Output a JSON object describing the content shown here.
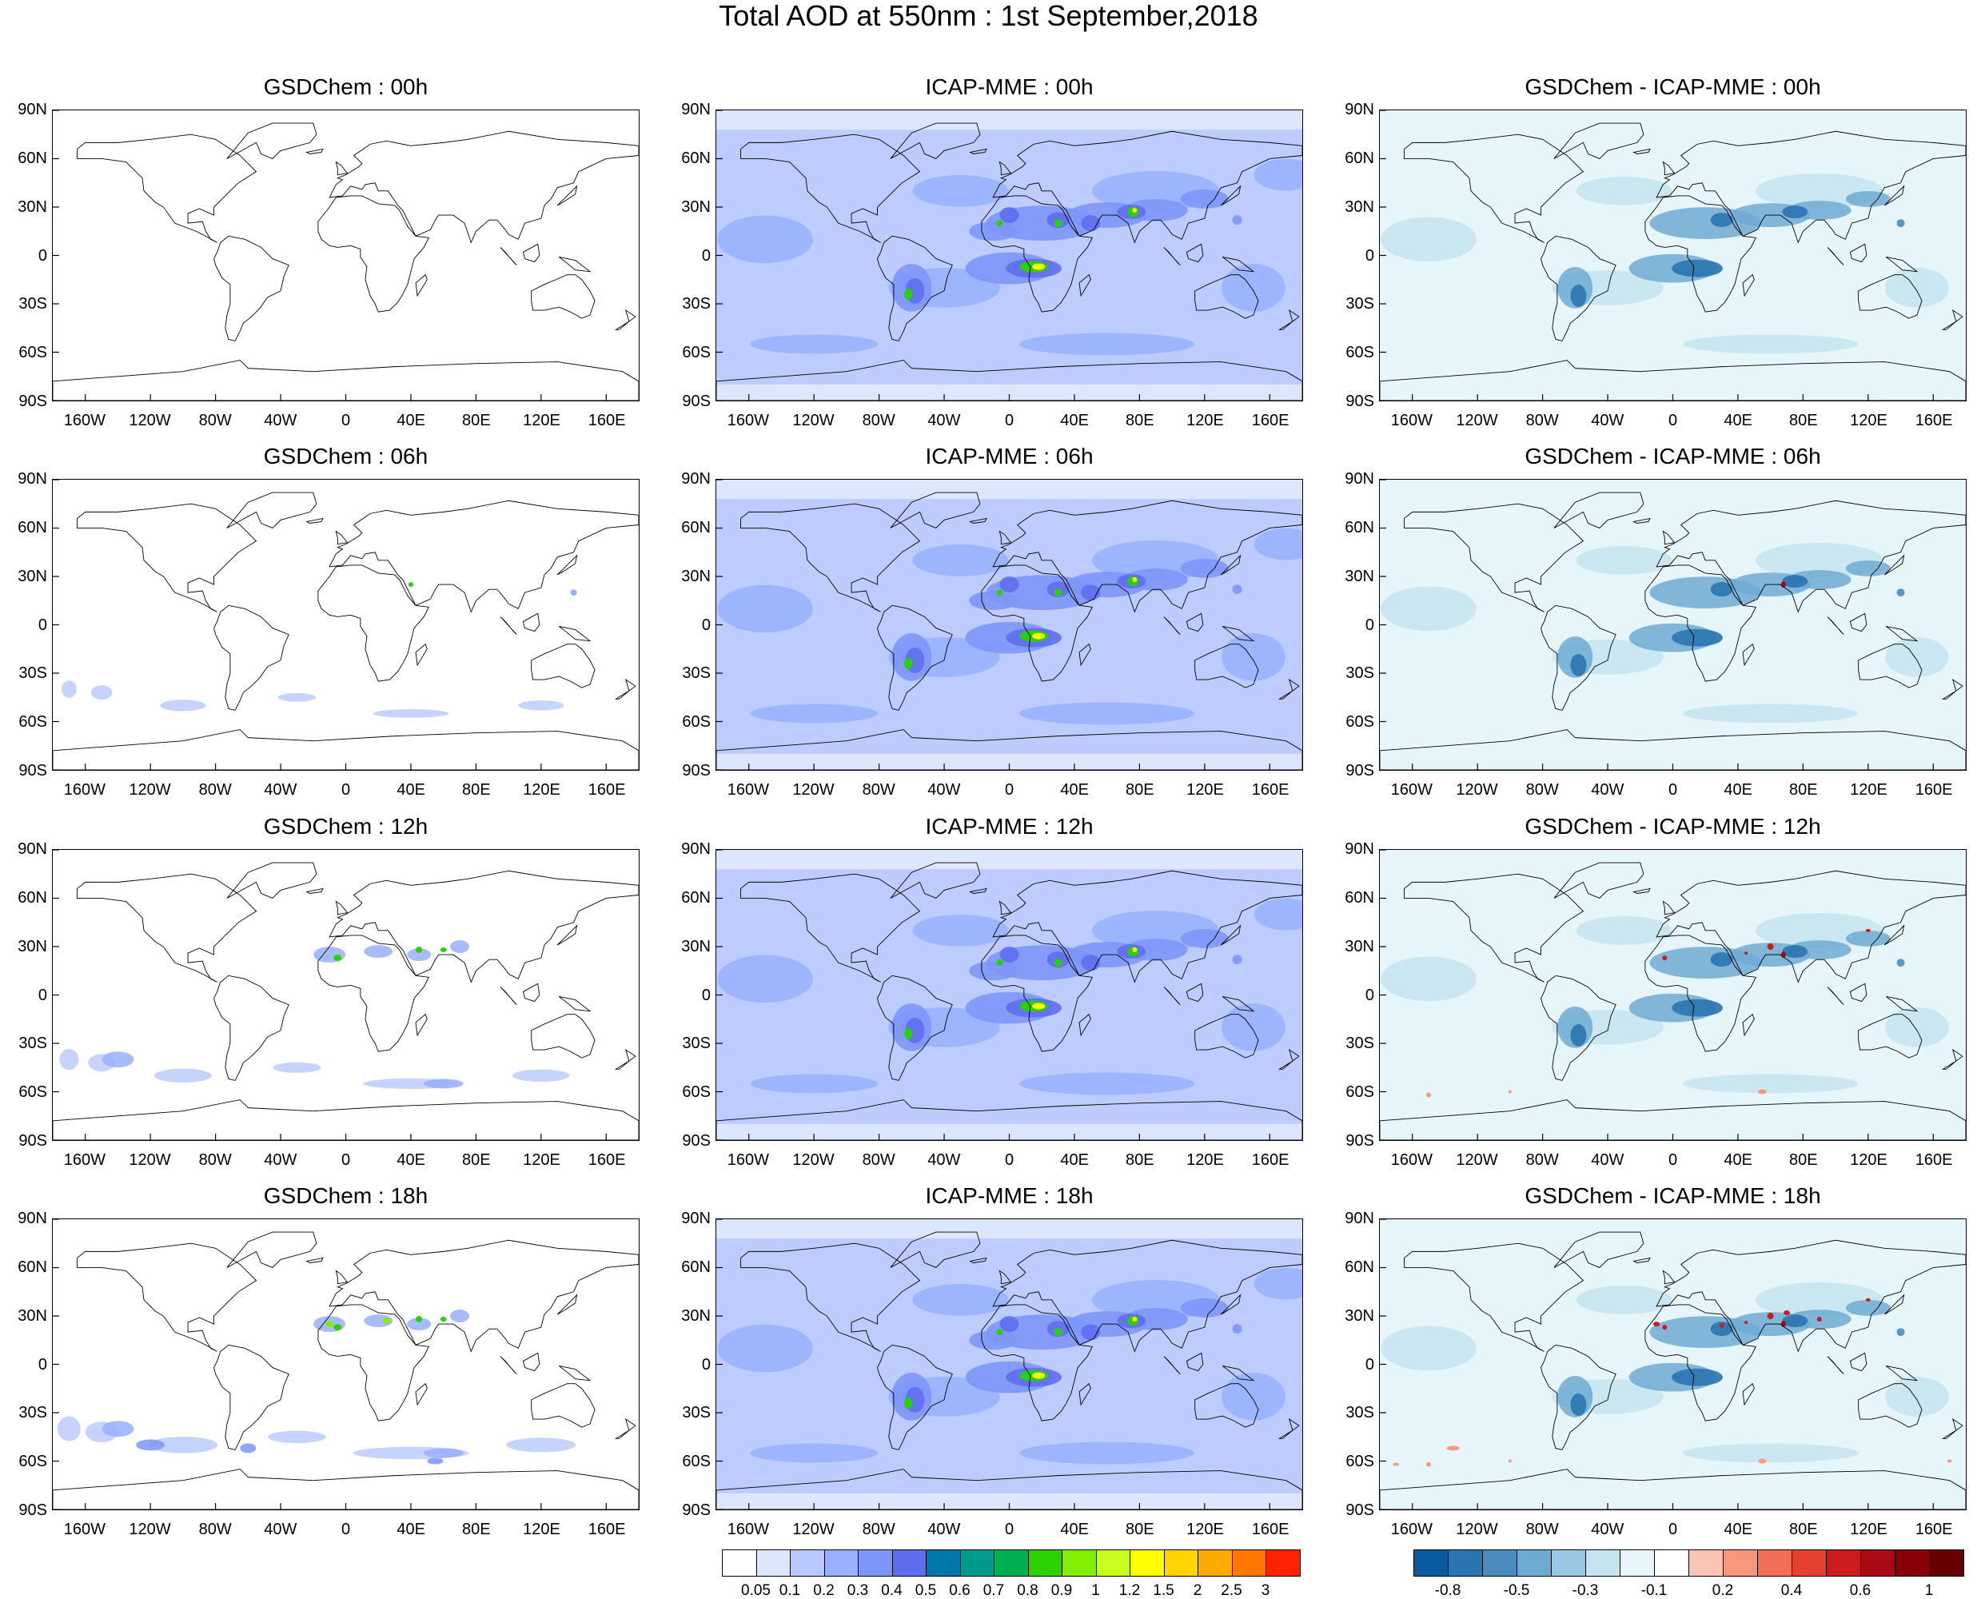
{
  "title": "Total AOD at 550nm : 1st September,2018",
  "lat_labels": [
    "90N",
    "60N",
    "30N",
    "0",
    "30S",
    "60S",
    "90S"
  ],
  "lon_labels": [
    "160W",
    "120W",
    "80W",
    "40W",
    "0",
    "40E",
    "80E",
    "120E",
    "160E"
  ],
  "rows": [
    {
      "titles": [
        "GSDChem : 00h",
        "ICAP-MME : 00h",
        "GSDChem - ICAP-MME : 00h"
      ]
    },
    {
      "titles": [
        "GSDChem : 06h",
        "ICAP-MME : 06h",
        "GSDChem - ICAP-MME : 06h"
      ]
    },
    {
      "titles": [
        "GSDChem : 12h",
        "ICAP-MME : 12h",
        "GSDChem - ICAP-MME : 12h"
      ]
    },
    {
      "titles": [
        "GSDChem : 18h",
        "ICAP-MME : 18h",
        "GSDChem - ICAP-MME : 18h"
      ]
    }
  ],
  "aod_colorbar": {
    "labels": [
      "0.05",
      "0.1",
      "0.2",
      "0.3",
      "0.4",
      "0.5",
      "0.6",
      "0.7",
      "0.8",
      "0.9",
      "1",
      "1.2",
      "1.5",
      "2",
      "2.5",
      "3"
    ],
    "colors": [
      "#ffffff",
      "#dce6ff",
      "#b9c8ff",
      "#98b0ff",
      "#7d96fa",
      "#5f6ef0",
      "#0077aa",
      "#009b8c",
      "#00b050",
      "#29d100",
      "#84ee00",
      "#c8ff1e",
      "#ffff00",
      "#ffd400",
      "#ffaa00",
      "#ff7700",
      "#ff2200"
    ]
  },
  "diff_colorbar": {
    "labels": [
      "-0.8",
      "-0.5",
      "-0.3",
      "-0.1",
      "0.2",
      "0.4",
      "0.6",
      "1"
    ],
    "colors": [
      "#0a5aa0",
      "#2a74b0",
      "#4a8cc0",
      "#6eaad2",
      "#98c8e2",
      "#c5e4f0",
      "#e6f5fa",
      "#ffffff",
      "#fcc4b4",
      "#f7987e",
      "#f26e55",
      "#e64030",
      "#cc1a1e",
      "#aa0a14",
      "#880008",
      "#660000"
    ]
  }
}
